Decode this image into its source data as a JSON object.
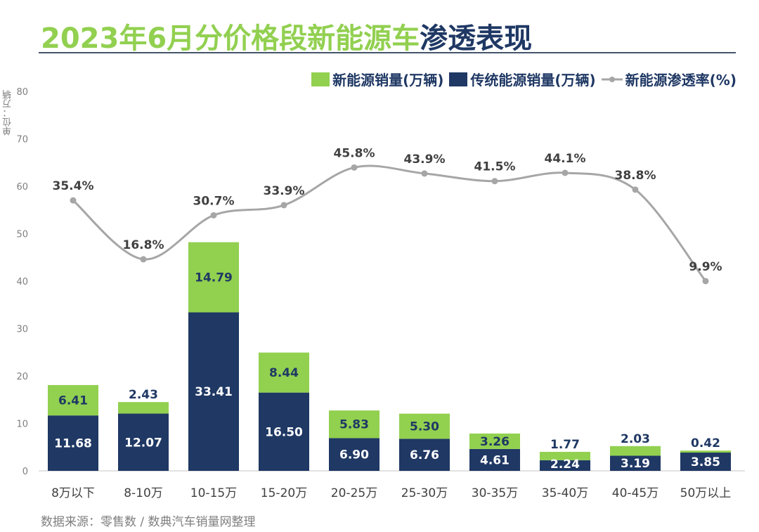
{
  "title": {
    "part_green": "2023年6月分价格段新能源车",
    "part_navy": "渗透表现"
  },
  "unit_label": "单位：万辆",
  "source": "数据来源：零售数 / 数典汽车销量网整理",
  "watermark": "数典汽车销量网",
  "colors": {
    "nev": "#92d050",
    "ice": "#1f3864",
    "rate": "#a6a6a6",
    "title_green": "#92d050",
    "title_navy": "#1f3864"
  },
  "chart_data": {
    "type": "bar",
    "stacked": true,
    "categories": [
      "8万以下",
      "8-10万",
      "10-15万",
      "15-20万",
      "20-25万",
      "25-30万",
      "30-35万",
      "35-40万",
      "40-45万",
      "50万以上"
    ],
    "series": [
      {
        "name": "传统能源销量(万辆)",
        "type": "bar",
        "values": [
          11.68,
          12.07,
          33.41,
          16.5,
          6.9,
          6.76,
          4.61,
          2.24,
          3.19,
          3.85
        ],
        "labels": [
          "11.68",
          "12.07",
          "33.41",
          "16.50",
          "6.90",
          "6.76",
          "4.61",
          "2.24",
          "3.19",
          "3.85"
        ]
      },
      {
        "name": "新能源销量(万辆)",
        "type": "bar",
        "values": [
          6.41,
          2.43,
          14.79,
          8.44,
          5.83,
          5.3,
          3.26,
          1.77,
          2.03,
          0.42
        ],
        "labels": [
          "6.41",
          "2.43",
          "14.79",
          "8.44",
          "5.83",
          "5.30",
          "3.26",
          "1.77",
          "2.03",
          "0.42"
        ]
      },
      {
        "name": "新能源渗透率(%)",
        "type": "line",
        "smooth": true,
        "axis": "secondary-hidden",
        "values": [
          35.4,
          16.8,
          30.7,
          33.9,
          45.8,
          43.9,
          41.5,
          44.1,
          38.8,
          9.9
        ],
        "labels": [
          "35.4%",
          "16.8%",
          "30.7%",
          "33.9%",
          "45.8%",
          "43.9%",
          "41.5%",
          "44.1%",
          "38.8%",
          "9.9%"
        ]
      }
    ],
    "legend_order": [
      "新能源销量(万辆)",
      "传统能源销量(万辆)",
      "新能源渗透率(%)"
    ],
    "legend_position": "top-right",
    "yticks": [
      "0",
      "10",
      "20",
      "30",
      "40",
      "50",
      "60",
      "70",
      "80"
    ],
    "ylim": [
      0,
      80
    ],
    "grid": false
  }
}
